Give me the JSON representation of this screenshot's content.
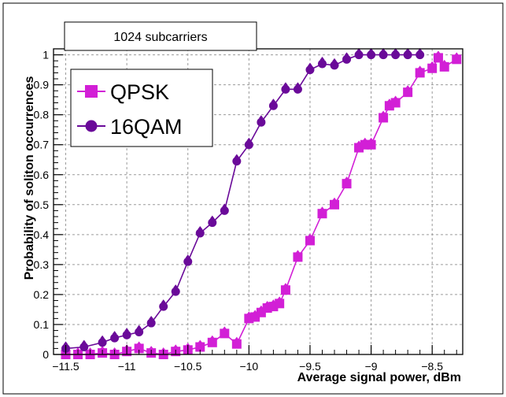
{
  "chart_data": {
    "type": "line",
    "title": "1024 subcarriers",
    "xlabel": "Average signal power, dBm",
    "ylabel": "Probability of soliton occurrences",
    "xlim": [
      -11.6,
      -8.25
    ],
    "ylim": [
      0,
      1.02
    ],
    "grid": "dashed",
    "legend_position": "top-left",
    "x_ticks": [
      -11.5,
      -11,
      -10.5,
      -10,
      -9.5,
      -9,
      -8.5
    ],
    "x_tick_labels": [
      "−11.5",
      "−11",
      "−10.5",
      "−10",
      "−9.5",
      "−9",
      "−8.5"
    ],
    "y_ticks": [
      0,
      0.1,
      0.2,
      0.3,
      0.4,
      0.5,
      0.6,
      0.7,
      0.8,
      0.9,
      1
    ],
    "y_tick_labels": [
      "0",
      "0.1",
      "0.2",
      "0.3",
      "0.4",
      "0.5",
      "0.6",
      "0.7",
      "0.8",
      "0.9",
      "1"
    ],
    "series": [
      {
        "name": "QPSK",
        "color": "#d21fd6",
        "marker": "square",
        "x": [
          -11.5,
          -11.4,
          -11.3,
          -11.2,
          -11.1,
          -11.0,
          -10.9,
          -10.8,
          -10.7,
          -10.6,
          -10.5,
          -10.4,
          -10.3,
          -10.2,
          -10.1,
          -10.0,
          -9.95,
          -9.9,
          -9.85,
          -9.8,
          -9.75,
          -9.7,
          -9.6,
          -9.5,
          -9.4,
          -9.3,
          -9.2,
          -9.1,
          -9.05,
          -9.0,
          -8.9,
          -8.85,
          -8.8,
          -8.7,
          -8.6,
          -8.5,
          -8.45,
          -8.4,
          -8.3
        ],
        "y": [
          0.0,
          0.0,
          0.0,
          0.005,
          0.0,
          0.01,
          0.02,
          0.005,
          0.0,
          0.01,
          0.015,
          0.025,
          0.04,
          0.07,
          0.035,
          0.12,
          0.125,
          0.14,
          0.155,
          0.16,
          0.17,
          0.215,
          0.325,
          0.38,
          0.47,
          0.5,
          0.57,
          0.69,
          0.7,
          0.7,
          0.79,
          0.83,
          0.84,
          0.875,
          0.94,
          0.955,
          0.99,
          0.96,
          0.985
        ]
      },
      {
        "name": "16QAM",
        "color": "#6a0a99",
        "marker": "circle",
        "x": [
          -11.5,
          -11.35,
          -11.2,
          -11.1,
          -11.0,
          -10.9,
          -10.8,
          -10.7,
          -10.6,
          -10.5,
          -10.4,
          -10.3,
          -10.2,
          -10.1,
          -10.0,
          -9.9,
          -9.8,
          -9.7,
          -9.6,
          -9.5,
          -9.4,
          -9.3,
          -9.2,
          -9.1,
          -9.0,
          -8.9,
          -8.8,
          -8.7,
          -8.6
        ],
        "y": [
          0.02,
          0.025,
          0.04,
          0.055,
          0.065,
          0.075,
          0.105,
          0.16,
          0.21,
          0.31,
          0.405,
          0.44,
          0.48,
          0.645,
          0.7,
          0.775,
          0.83,
          0.885,
          0.885,
          0.95,
          0.97,
          0.965,
          0.985,
          1.0,
          1.0,
          1.0,
          1.0,
          1.0,
          1.0
        ]
      }
    ]
  }
}
